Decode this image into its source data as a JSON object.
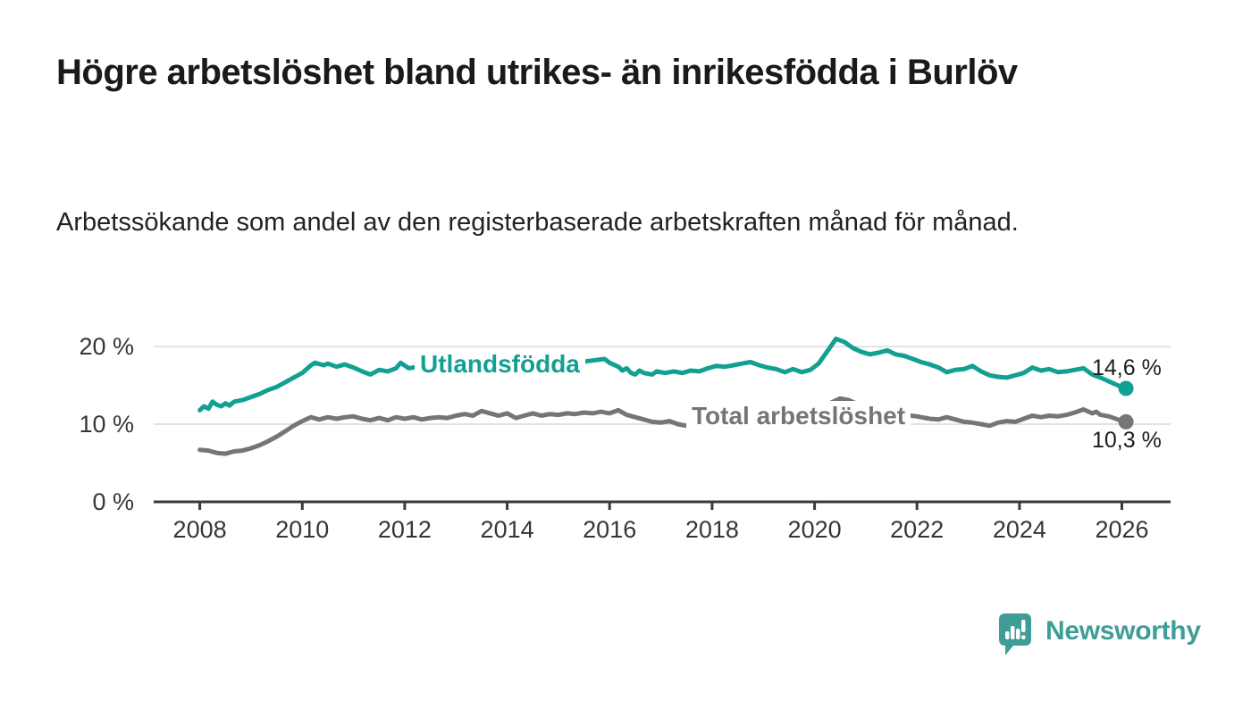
{
  "header": {
    "title": "Högre arbetslöshet bland utrikes- än inrikesfödda i Burlöv",
    "subtitle": "Arbetssökande som andel av den registerbaserade arbetskraften månad för månad."
  },
  "branding": {
    "wordmark": "Newsworthy",
    "brand_color": "#3f9d97"
  },
  "chart_data": {
    "type": "line",
    "title": "Högre arbetslöshet bland utrikes- än inrikesfödda i Burlöv",
    "subtitle": "Arbetssökande som andel av den registerbaserade arbetskraften månad för månad.",
    "x_unit": "year (monthly observations)",
    "y_unit": "percent of labour force",
    "xlim": [
      2007.1,
      2026.95
    ],
    "ylim": [
      0,
      23
    ],
    "grid": "horizontal",
    "legend": "inline-labels",
    "x_ticks": [
      2008,
      2010,
      2012,
      2014,
      2016,
      2018,
      2020,
      2022,
      2024,
      2026
    ],
    "y_ticks": [
      {
        "value": 0,
        "label": "0 %",
        "grid": false
      },
      {
        "value": 10,
        "label": "10 %",
        "grid": true
      },
      {
        "value": 20,
        "label": "20 %",
        "grid": true
      }
    ],
    "series": [
      {
        "name": "Utlandsfödda",
        "color": "#11a091",
        "end_label": "14,6 %",
        "end_value": 14.6,
        "points": [
          [
            2008.0,
            11.8
          ],
          [
            2008.08,
            12.3
          ],
          [
            2008.17,
            12.0
          ],
          [
            2008.25,
            12.9
          ],
          [
            2008.33,
            12.5
          ],
          [
            2008.42,
            12.3
          ],
          [
            2008.5,
            12.7
          ],
          [
            2008.58,
            12.4
          ],
          [
            2008.67,
            12.9
          ],
          [
            2008.83,
            13.1
          ],
          [
            2009.0,
            13.5
          ],
          [
            2009.17,
            13.9
          ],
          [
            2009.33,
            14.4
          ],
          [
            2009.5,
            14.8
          ],
          [
            2009.67,
            15.4
          ],
          [
            2009.83,
            16.0
          ],
          [
            2010.0,
            16.6
          ],
          [
            2010.17,
            17.6
          ],
          [
            2010.25,
            17.9
          ],
          [
            2010.42,
            17.6
          ],
          [
            2010.5,
            17.8
          ],
          [
            2010.67,
            17.4
          ],
          [
            2010.83,
            17.7
          ],
          [
            2011.0,
            17.3
          ],
          [
            2011.17,
            16.8
          ],
          [
            2011.33,
            16.4
          ],
          [
            2011.5,
            17.0
          ],
          [
            2011.67,
            16.8
          ],
          [
            2011.83,
            17.2
          ],
          [
            2011.92,
            17.9
          ],
          [
            2012.08,
            17.2
          ],
          [
            2012.25,
            17.4
          ],
          [
            2012.42,
            17.3
          ],
          [
            2012.67,
            17.4
          ],
          [
            2012.92,
            17.5
          ],
          [
            2013.17,
            17.7
          ],
          [
            2013.42,
            17.9
          ],
          [
            2013.67,
            17.7
          ],
          [
            2013.92,
            17.8
          ],
          [
            2014.17,
            17.6
          ],
          [
            2014.42,
            17.8
          ],
          [
            2014.67,
            17.9
          ],
          [
            2014.92,
            17.8
          ],
          [
            2015.17,
            17.9
          ],
          [
            2015.42,
            18.0
          ],
          [
            2015.67,
            18.2
          ],
          [
            2015.9,
            18.4
          ],
          [
            2016.0,
            17.9
          ],
          [
            2016.17,
            17.4
          ],
          [
            2016.25,
            16.9
          ],
          [
            2016.33,
            17.2
          ],
          [
            2016.42,
            16.6
          ],
          [
            2016.5,
            16.4
          ],
          [
            2016.58,
            16.9
          ],
          [
            2016.67,
            16.6
          ],
          [
            2016.83,
            16.4
          ],
          [
            2016.92,
            16.8
          ],
          [
            2017.08,
            16.6
          ],
          [
            2017.25,
            16.8
          ],
          [
            2017.42,
            16.6
          ],
          [
            2017.58,
            16.9
          ],
          [
            2017.75,
            16.8
          ],
          [
            2017.92,
            17.2
          ],
          [
            2018.08,
            17.5
          ],
          [
            2018.25,
            17.4
          ],
          [
            2018.42,
            17.6
          ],
          [
            2018.58,
            17.8
          ],
          [
            2018.75,
            18.0
          ],
          [
            2018.92,
            17.6
          ],
          [
            2019.08,
            17.3
          ],
          [
            2019.25,
            17.1
          ],
          [
            2019.42,
            16.7
          ],
          [
            2019.58,
            17.1
          ],
          [
            2019.75,
            16.7
          ],
          [
            2019.92,
            17.0
          ],
          [
            2020.08,
            17.8
          ],
          [
            2020.25,
            19.4
          ],
          [
            2020.42,
            21.0
          ],
          [
            2020.58,
            20.6
          ],
          [
            2020.75,
            19.8
          ],
          [
            2020.92,
            19.3
          ],
          [
            2021.08,
            19.0
          ],
          [
            2021.25,
            19.2
          ],
          [
            2021.42,
            19.5
          ],
          [
            2021.58,
            19.0
          ],
          [
            2021.75,
            18.8
          ],
          [
            2021.92,
            18.4
          ],
          [
            2022.08,
            18.0
          ],
          [
            2022.25,
            17.7
          ],
          [
            2022.42,
            17.3
          ],
          [
            2022.58,
            16.7
          ],
          [
            2022.75,
            17.0
          ],
          [
            2022.92,
            17.1
          ],
          [
            2023.08,
            17.5
          ],
          [
            2023.25,
            16.8
          ],
          [
            2023.42,
            16.3
          ],
          [
            2023.58,
            16.1
          ],
          [
            2023.75,
            16.0
          ],
          [
            2023.92,
            16.3
          ],
          [
            2024.08,
            16.6
          ],
          [
            2024.25,
            17.3
          ],
          [
            2024.42,
            16.9
          ],
          [
            2024.58,
            17.1
          ],
          [
            2024.75,
            16.7
          ],
          [
            2024.92,
            16.8
          ],
          [
            2025.08,
            17.0
          ],
          [
            2025.25,
            17.2
          ],
          [
            2025.42,
            16.4
          ],
          [
            2025.58,
            16.0
          ],
          [
            2025.75,
            15.5
          ],
          [
            2025.92,
            15.0
          ],
          [
            2026.08,
            14.6
          ]
        ]
      },
      {
        "name": "Total arbetslöshet",
        "color": "#757575",
        "end_label": "10,3 %",
        "end_value": 10.3,
        "points": [
          [
            2008.0,
            6.7
          ],
          [
            2008.17,
            6.6
          ],
          [
            2008.33,
            6.3
          ],
          [
            2008.5,
            6.2
          ],
          [
            2008.67,
            6.5
          ],
          [
            2008.83,
            6.6
          ],
          [
            2009.0,
            6.9
          ],
          [
            2009.17,
            7.3
          ],
          [
            2009.33,
            7.8
          ],
          [
            2009.5,
            8.4
          ],
          [
            2009.67,
            9.1
          ],
          [
            2009.83,
            9.8
          ],
          [
            2010.0,
            10.4
          ],
          [
            2010.17,
            10.9
          ],
          [
            2010.33,
            10.6
          ],
          [
            2010.5,
            10.9
          ],
          [
            2010.67,
            10.7
          ],
          [
            2010.83,
            10.9
          ],
          [
            2011.0,
            11.0
          ],
          [
            2011.17,
            10.7
          ],
          [
            2011.33,
            10.5
          ],
          [
            2011.5,
            10.8
          ],
          [
            2011.67,
            10.5
          ],
          [
            2011.83,
            10.9
          ],
          [
            2012.0,
            10.7
          ],
          [
            2012.17,
            10.9
          ],
          [
            2012.33,
            10.6
          ],
          [
            2012.5,
            10.8
          ],
          [
            2012.67,
            10.9
          ],
          [
            2012.83,
            10.8
          ],
          [
            2013.0,
            11.1
          ],
          [
            2013.17,
            11.3
          ],
          [
            2013.33,
            11.1
          ],
          [
            2013.5,
            11.7
          ],
          [
            2013.67,
            11.4
          ],
          [
            2013.83,
            11.1
          ],
          [
            2014.0,
            11.4
          ],
          [
            2014.17,
            10.8
          ],
          [
            2014.33,
            11.1
          ],
          [
            2014.5,
            11.4
          ],
          [
            2014.67,
            11.1
          ],
          [
            2014.83,
            11.3
          ],
          [
            2015.0,
            11.2
          ],
          [
            2015.17,
            11.4
          ],
          [
            2015.33,
            11.3
          ],
          [
            2015.5,
            11.5
          ],
          [
            2015.67,
            11.4
          ],
          [
            2015.83,
            11.6
          ],
          [
            2016.0,
            11.4
          ],
          [
            2016.17,
            11.8
          ],
          [
            2016.33,
            11.2
          ],
          [
            2016.5,
            10.9
          ],
          [
            2016.67,
            10.6
          ],
          [
            2016.83,
            10.3
          ],
          [
            2017.0,
            10.2
          ],
          [
            2017.17,
            10.4
          ],
          [
            2017.33,
            10.0
          ],
          [
            2017.5,
            9.8
          ],
          [
            2017.67,
            10.0
          ],
          [
            2017.83,
            9.9
          ],
          [
            2018.0,
            10.1
          ],
          [
            2018.25,
            9.9
          ],
          [
            2018.5,
            10.2
          ],
          [
            2018.75,
            10.0
          ],
          [
            2019.0,
            10.1
          ],
          [
            2019.25,
            9.9
          ],
          [
            2019.5,
            10.0
          ],
          [
            2019.75,
            10.2
          ],
          [
            2020.0,
            10.9
          ],
          [
            2020.17,
            11.9
          ],
          [
            2020.33,
            12.8
          ],
          [
            2020.5,
            13.3
          ],
          [
            2020.67,
            13.1
          ],
          [
            2020.83,
            12.6
          ],
          [
            2021.0,
            12.2
          ],
          [
            2021.25,
            11.9
          ],
          [
            2021.5,
            11.6
          ],
          [
            2021.75,
            11.2
          ],
          [
            2022.0,
            11.0
          ],
          [
            2022.25,
            10.7
          ],
          [
            2022.42,
            10.6
          ],
          [
            2022.58,
            10.9
          ],
          [
            2022.75,
            10.6
          ],
          [
            2022.92,
            10.3
          ],
          [
            2023.08,
            10.2
          ],
          [
            2023.25,
            10.0
          ],
          [
            2023.42,
            9.8
          ],
          [
            2023.58,
            10.2
          ],
          [
            2023.75,
            10.4
          ],
          [
            2023.92,
            10.3
          ],
          [
            2024.08,
            10.7
          ],
          [
            2024.25,
            11.1
          ],
          [
            2024.42,
            10.9
          ],
          [
            2024.58,
            11.1
          ],
          [
            2024.75,
            11.0
          ],
          [
            2024.92,
            11.2
          ],
          [
            2025.08,
            11.5
          ],
          [
            2025.25,
            11.9
          ],
          [
            2025.42,
            11.4
          ],
          [
            2025.5,
            11.6
          ],
          [
            2025.58,
            11.2
          ],
          [
            2025.75,
            11.0
          ],
          [
            2025.92,
            10.6
          ],
          [
            2026.08,
            10.3
          ]
        ]
      }
    ]
  }
}
